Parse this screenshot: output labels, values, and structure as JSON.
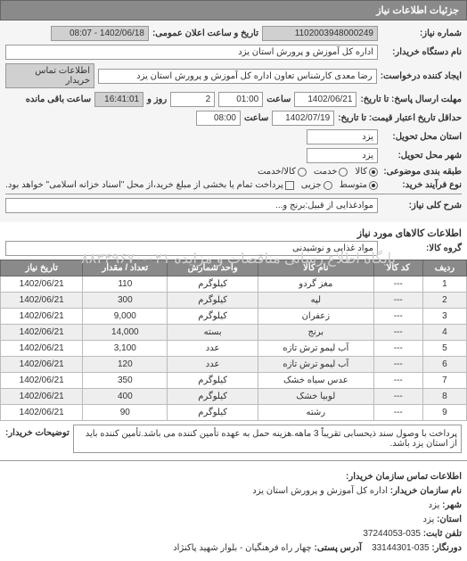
{
  "tab_title": "جزئیات اطلاعات نیاز",
  "header": {
    "req_number_label": "شماره نیاز:",
    "req_number": "1102003948000249",
    "announce_label": "تاریخ و ساعت اعلان عمومی:",
    "announce_value": "1402/06/18 - 08:07",
    "buyer_name_label": "نام دستگاه خریدار:",
    "buyer_name": "اداره کل آموزش و پرورش استان یزد",
    "creator_label": "ایجاد کننده درخواست:",
    "creator": "رضا معدی کارشناس تعاون اداره کل آموزش و پرورش استان یزد",
    "contact_link": "اطلاعات تماس خریدار",
    "deadline_send_label": "مهلت ارسال پاسخ: تا تاریخ:",
    "deadline_send_date": "1402/06/21",
    "deadline_send_time_label": "ساعت",
    "deadline_send_time": "01:00",
    "remain_days_label": "روز و",
    "remain_days": "2",
    "remain_time": "16:41:01",
    "remain_suffix": "ساعت باقی مانده",
    "deadline_price_label": "حداقل تاریخ اعتبار قیمت: تا تاریخ:",
    "deadline_price_date": "1402/07/19",
    "deadline_price_time_label": "ساعت",
    "deadline_price_time": "08:00",
    "state_label": "استان محل تحویل:",
    "state": "یزد",
    "city_label": "شهر محل تحویل:",
    "city": "یزد",
    "category_label": "طبقه بندی موضوعی:",
    "cat_kala": "کالا",
    "cat_khadamat": "خدمت",
    "cat_kala_khadamat": "کالا/خدمت",
    "process_label": "نوع فرآیند خرید:",
    "proc_mid": "متوسط",
    "proc_small": "جزیی",
    "proc_note": "پرداخت تمام یا بخشی از مبلغ خرید،از محل \"اسناد خزانه اسلامی\" خواهد بود.",
    "desc_label": "شرح کلی نیاز:",
    "desc_value": "موادغذایی از قبیل:برنج و..."
  },
  "items_section_title": "اطلاعات کالاهای مورد نیاز",
  "group_label": "گروه کالا:",
  "group_value": "مواد غذایی و نوشیدنی",
  "table": {
    "columns": [
      "ردیف",
      "کد کالا",
      "نام کالا",
      "واحد شمارش",
      "تعداد / مقدار",
      "تاریخ نیاز"
    ],
    "rows": [
      [
        "1",
        "---",
        "مغز گردو",
        "کیلوگرم",
        "110",
        "1402/06/21"
      ],
      [
        "2",
        "---",
        "لپه",
        "کیلوگرم",
        "300",
        "1402/06/21"
      ],
      [
        "3",
        "---",
        "زعفران",
        "کیلوگرم",
        "9,000",
        "1402/06/21"
      ],
      [
        "4",
        "---",
        "برنج",
        "بسته",
        "14,000",
        "1402/06/21"
      ],
      [
        "5",
        "---",
        "آب لیمو ترش تازه",
        "عدد",
        "3,100",
        "1402/06/21"
      ],
      [
        "6",
        "---",
        "آب لیمو ترش تازه",
        "عدد",
        "120",
        "1402/06/21"
      ],
      [
        "7",
        "---",
        "عدس سیاه خشک",
        "کیلوگرم",
        "350",
        "1402/06/21"
      ],
      [
        "8",
        "---",
        "لوبیا خشک",
        "کیلوگرم",
        "400",
        "1402/06/21"
      ],
      [
        "9",
        "---",
        "رشته",
        "کیلوگرم",
        "90",
        "1402/06/21"
      ]
    ]
  },
  "note_label": "توضیحات خریدار:",
  "note_text": "پرداخت با وصول سند ذیحسابی تقریباً 3 ماهه.هزینه حمل به عهده تأمین کننده می باشد.تأمین کننده باید از استان یزد باشد.",
  "watermark": "پایگاه اطلاع رسانی مناقصات و مزایده ۰۲۱-۸۸۳۴۹۶۷۰",
  "contact": {
    "title": "اطلاعات تماس سازمان خریدار:",
    "org_label": "نام سازمان خریدار:",
    "org": "اداره کل آموزش و پرورش استان یزد",
    "city_label": "شهر:",
    "city": "یزد",
    "province_label": "استان:",
    "province": "یزد",
    "phone_label": "تلفن ثابت:",
    "phone": "035-37244053",
    "fax_label": "دورنگار:",
    "fax": "035-33144301",
    "address_label": "آدرس پستی:",
    "address": "چهار راه فرهنگیان - بلوار شهید پاکنژاد"
  }
}
